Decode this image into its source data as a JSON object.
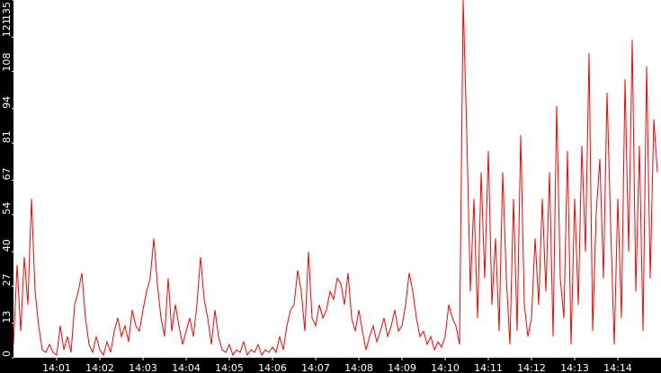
{
  "chart_data": {
    "type": "line",
    "title": "",
    "xlabel": "",
    "ylabel": "",
    "x_start": "14:00:00",
    "x_step_seconds": 5,
    "xlim": [
      "14:00:00",
      "14:15:00"
    ],
    "ylim": [
      0,
      135
    ],
    "y_ticks": [
      "0",
      "13",
      "27",
      "40",
      "54",
      "67",
      "81",
      "94",
      "108",
      "121",
      "135"
    ],
    "x_ticks": [
      "14:01",
      "14:02",
      "14:03",
      "14:04",
      "14:05",
      "14:06",
      "14:07",
      "14:08",
      "14:09",
      "14:10",
      "14:11",
      "14:12",
      "14:13",
      "14:14"
    ],
    "grid": false,
    "legend": "none",
    "colors": {
      "line": "#ff0000",
      "axis_background": "#000000",
      "plot_background": "#ffffff",
      "tick_text": "#ffffff"
    },
    "series": [
      {
        "values": [
          5,
          35,
          10,
          38,
          20,
          60,
          25,
          12,
          3,
          2,
          5,
          2,
          1,
          12,
          3,
          8,
          2,
          20,
          25,
          32,
          15,
          5,
          2,
          8,
          3,
          1,
          6,
          2,
          10,
          15,
          8,
          12,
          6,
          18,
          12,
          10,
          18,
          25,
          30,
          45,
          28,
          15,
          8,
          30,
          10,
          20,
          12,
          5,
          10,
          15,
          8,
          20,
          38,
          22,
          15,
          5,
          18,
          8,
          3,
          2,
          5,
          1,
          3,
          2,
          6,
          1,
          3,
          2,
          5,
          1,
          3,
          2,
          4,
          2,
          8,
          3,
          12,
          18,
          20,
          33,
          25,
          10,
          40,
          15,
          12,
          20,
          15,
          18,
          25,
          22,
          30,
          28,
          20,
          32,
          15,
          10,
          18,
          10,
          3,
          8,
          12,
          6,
          10,
          15,
          8,
          12,
          18,
          10,
          12,
          20,
          32,
          25,
          15,
          8,
          10,
          5,
          8,
          3,
          6,
          4,
          8,
          20,
          15,
          12,
          5,
          135,
          85,
          25,
          60,
          15,
          70,
          30,
          78,
          20,
          45,
          10,
          70,
          30,
          5,
          60,
          10,
          84,
          20,
          8,
          15,
          45,
          20,
          60,
          25,
          70,
          8,
          95,
          30,
          15,
          78,
          5,
          60,
          20,
          80,
          40,
          115,
          10,
          55,
          75,
          30,
          100,
          50,
          5,
          60,
          15,
          105,
          40,
          120,
          25,
          80,
          10,
          110,
          30,
          90,
          70
        ]
      }
    ]
  }
}
